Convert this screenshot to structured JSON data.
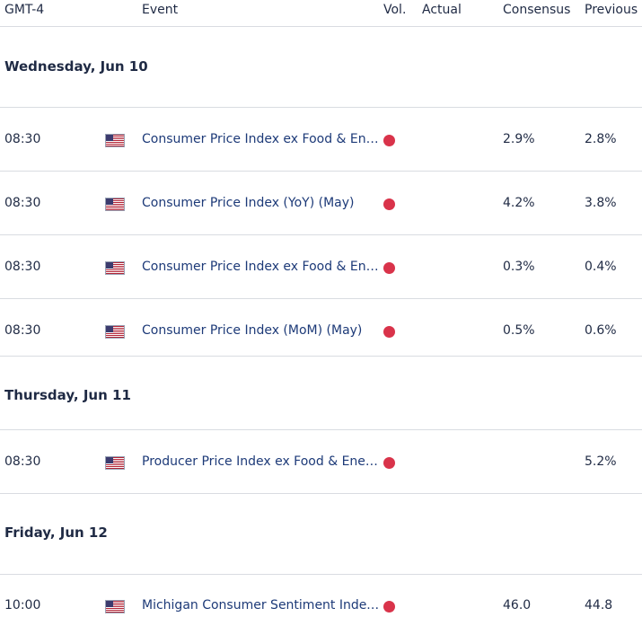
{
  "header": {
    "timezone": "GMT-4",
    "event": "Event",
    "vol": "Vol.",
    "actual": "Actual",
    "consensus": "Consensus",
    "previous": "Previous"
  },
  "days": [
    {
      "label": "Wednesday, Jun 10",
      "events": [
        {
          "time": "08:30",
          "country": "us-flag-icon",
          "event": "Consumer Price Index ex Food & Energy (YoY) (May)",
          "volatility": "high",
          "actual": "",
          "consensus": "2.9%",
          "previous": "2.8%"
        },
        {
          "time": "08:30",
          "country": "us-flag-icon",
          "event": "Consumer Price Index (YoY) (May)",
          "volatility": "high",
          "actual": "",
          "consensus": "4.2%",
          "previous": "3.8%"
        },
        {
          "time": "08:30",
          "country": "us-flag-icon",
          "event": "Consumer Price Index ex Food & Energy (MoM) (May)",
          "volatility": "high",
          "actual": "",
          "consensus": "0.3%",
          "previous": "0.4%"
        },
        {
          "time": "08:30",
          "country": "us-flag-icon",
          "event": "Consumer Price Index (MoM) (May)",
          "volatility": "high",
          "actual": "",
          "consensus": "0.5%",
          "previous": "0.6%"
        }
      ]
    },
    {
      "label": "Thursday, Jun 11",
      "events": [
        {
          "time": "08:30",
          "country": "us-flag-icon",
          "event": "Producer Price Index ex Food & Energy (YoY) (May)",
          "volatility": "high",
          "actual": "",
          "consensus": "",
          "previous": "5.2%"
        }
      ]
    },
    {
      "label": "Friday, Jun 12",
      "events": [
        {
          "time": "10:00",
          "country": "us-flag-icon",
          "event": "Michigan Consumer Sentiment Index (Jun) PREL",
          "volatility": "high",
          "actual": "",
          "consensus": "46.0",
          "previous": "44.8"
        }
      ]
    }
  ],
  "colors": {
    "high_volatility": "#d9334a",
    "event_text": "#1d3a78",
    "divider": "#d9dce1"
  }
}
